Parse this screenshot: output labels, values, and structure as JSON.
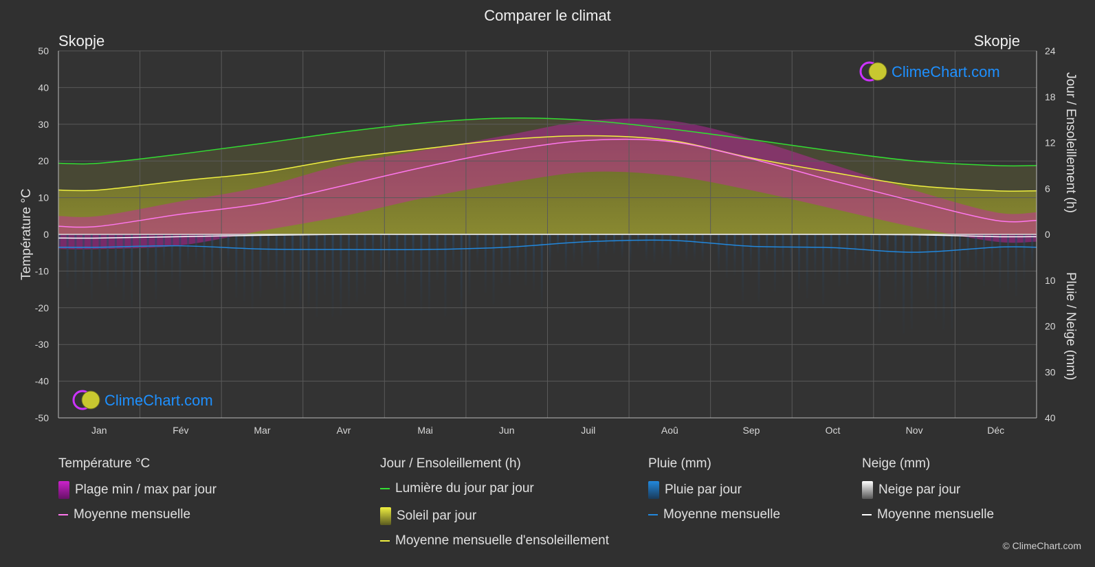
{
  "title": "Comparer le climat",
  "city_left": "Skopje",
  "city_right": "Skopje",
  "brand": "ClimeChart.com",
  "copyright": "© ClimeChart.com",
  "colors": {
    "background": "#303030",
    "daylight": "#33dd33",
    "sunshine_avg": "#f0f040",
    "sunshine_fill": "#8c8c30",
    "temp_avg": "#ff77ee",
    "temp_range": "#cc22aa",
    "rain": "#2288dd",
    "snow": "#ffffff",
    "brand_text": "#1e90ff"
  },
  "legend": {
    "temp_head": "Température °C",
    "temp_range": "Plage min / max par jour",
    "temp_avg": "Moyenne mensuelle",
    "sun_head": "Jour / Ensoleillement (h)",
    "daylight": "Lumière du jour par jour",
    "sunshine": "Soleil par jour",
    "sunshine_avg": "Moyenne mensuelle d'ensoleillement",
    "rain_head": "Pluie (mm)",
    "rain_day": "Pluie par jour",
    "rain_avg": "Moyenne mensuelle",
    "snow_head": "Neige (mm)",
    "snow_day": "Neige par jour",
    "snow_avg": "Moyenne mensuelle"
  },
  "chart_data": {
    "type": "line",
    "title": "Comparer le climat",
    "categories": [
      "Jan",
      "Fév",
      "Mar",
      "Avr",
      "Mai",
      "Jun",
      "Juil",
      "Aoû",
      "Sep",
      "Oct",
      "Nov",
      "Déc"
    ],
    "y_left": {
      "label": "Température °C",
      "min": -50,
      "max": 50,
      "ticks": [
        50,
        40,
        30,
        20,
        10,
        0,
        -10,
        -20,
        -30,
        -40,
        -50
      ]
    },
    "y_right_top": {
      "label": "Jour / Ensoleillement (h)",
      "min": 0,
      "max": 24,
      "ticks": [
        24,
        18,
        12,
        6,
        0
      ]
    },
    "y_right_bottom": {
      "label": "Pluie / Neige (mm)",
      "min": 0,
      "max": 40,
      "ticks": [
        0,
        10,
        20,
        30,
        40
      ]
    },
    "grid": true,
    "series": [
      {
        "name": "Lumière du jour par jour",
        "axis": "hours",
        "values": [
          9.3,
          10.5,
          11.9,
          13.4,
          14.6,
          15.2,
          14.9,
          13.8,
          12.4,
          10.9,
          9.6,
          9.0
        ]
      },
      {
        "name": "Moyenne mensuelle d'ensoleillement",
        "axis": "hours",
        "values": [
          5.8,
          7.0,
          8.1,
          9.9,
          11.2,
          12.4,
          12.9,
          12.3,
          10.0,
          8.1,
          6.4,
          5.7
        ]
      },
      {
        "name": "Température moyenne mensuelle",
        "axis": "temp",
        "values": [
          2.2,
          5.5,
          8.4,
          13.3,
          18.4,
          22.8,
          25.6,
          25.3,
          20.6,
          14.6,
          9.0,
          3.8
        ]
      },
      {
        "name": "Plage max par jour",
        "axis": "temp",
        "values": [
          5.0,
          9.0,
          13.0,
          19.0,
          23.0,
          27.0,
          31.0,
          31.0,
          26.0,
          19.0,
          12.0,
          6.0
        ]
      },
      {
        "name": "Plage min par jour",
        "axis": "temp",
        "values": [
          -4.0,
          -3.0,
          1.0,
          5.0,
          10.0,
          14.0,
          17.0,
          16.0,
          12.0,
          7.0,
          2.0,
          -2.0
        ]
      },
      {
        "name": "Pluie moyenne mensuelle",
        "axis": "rain",
        "values": [
          2.8,
          2.5,
          3.2,
          3.3,
          3.3,
          2.8,
          1.6,
          1.3,
          2.6,
          2.9,
          3.9,
          2.8
        ]
      },
      {
        "name": "Neige moyenne mensuelle",
        "axis": "rain",
        "values": [
          0.8,
          0.5,
          0.2,
          0.0,
          0.0,
          0.0,
          0.0,
          0.0,
          0.0,
          0.0,
          0.1,
          0.5
        ]
      }
    ]
  }
}
